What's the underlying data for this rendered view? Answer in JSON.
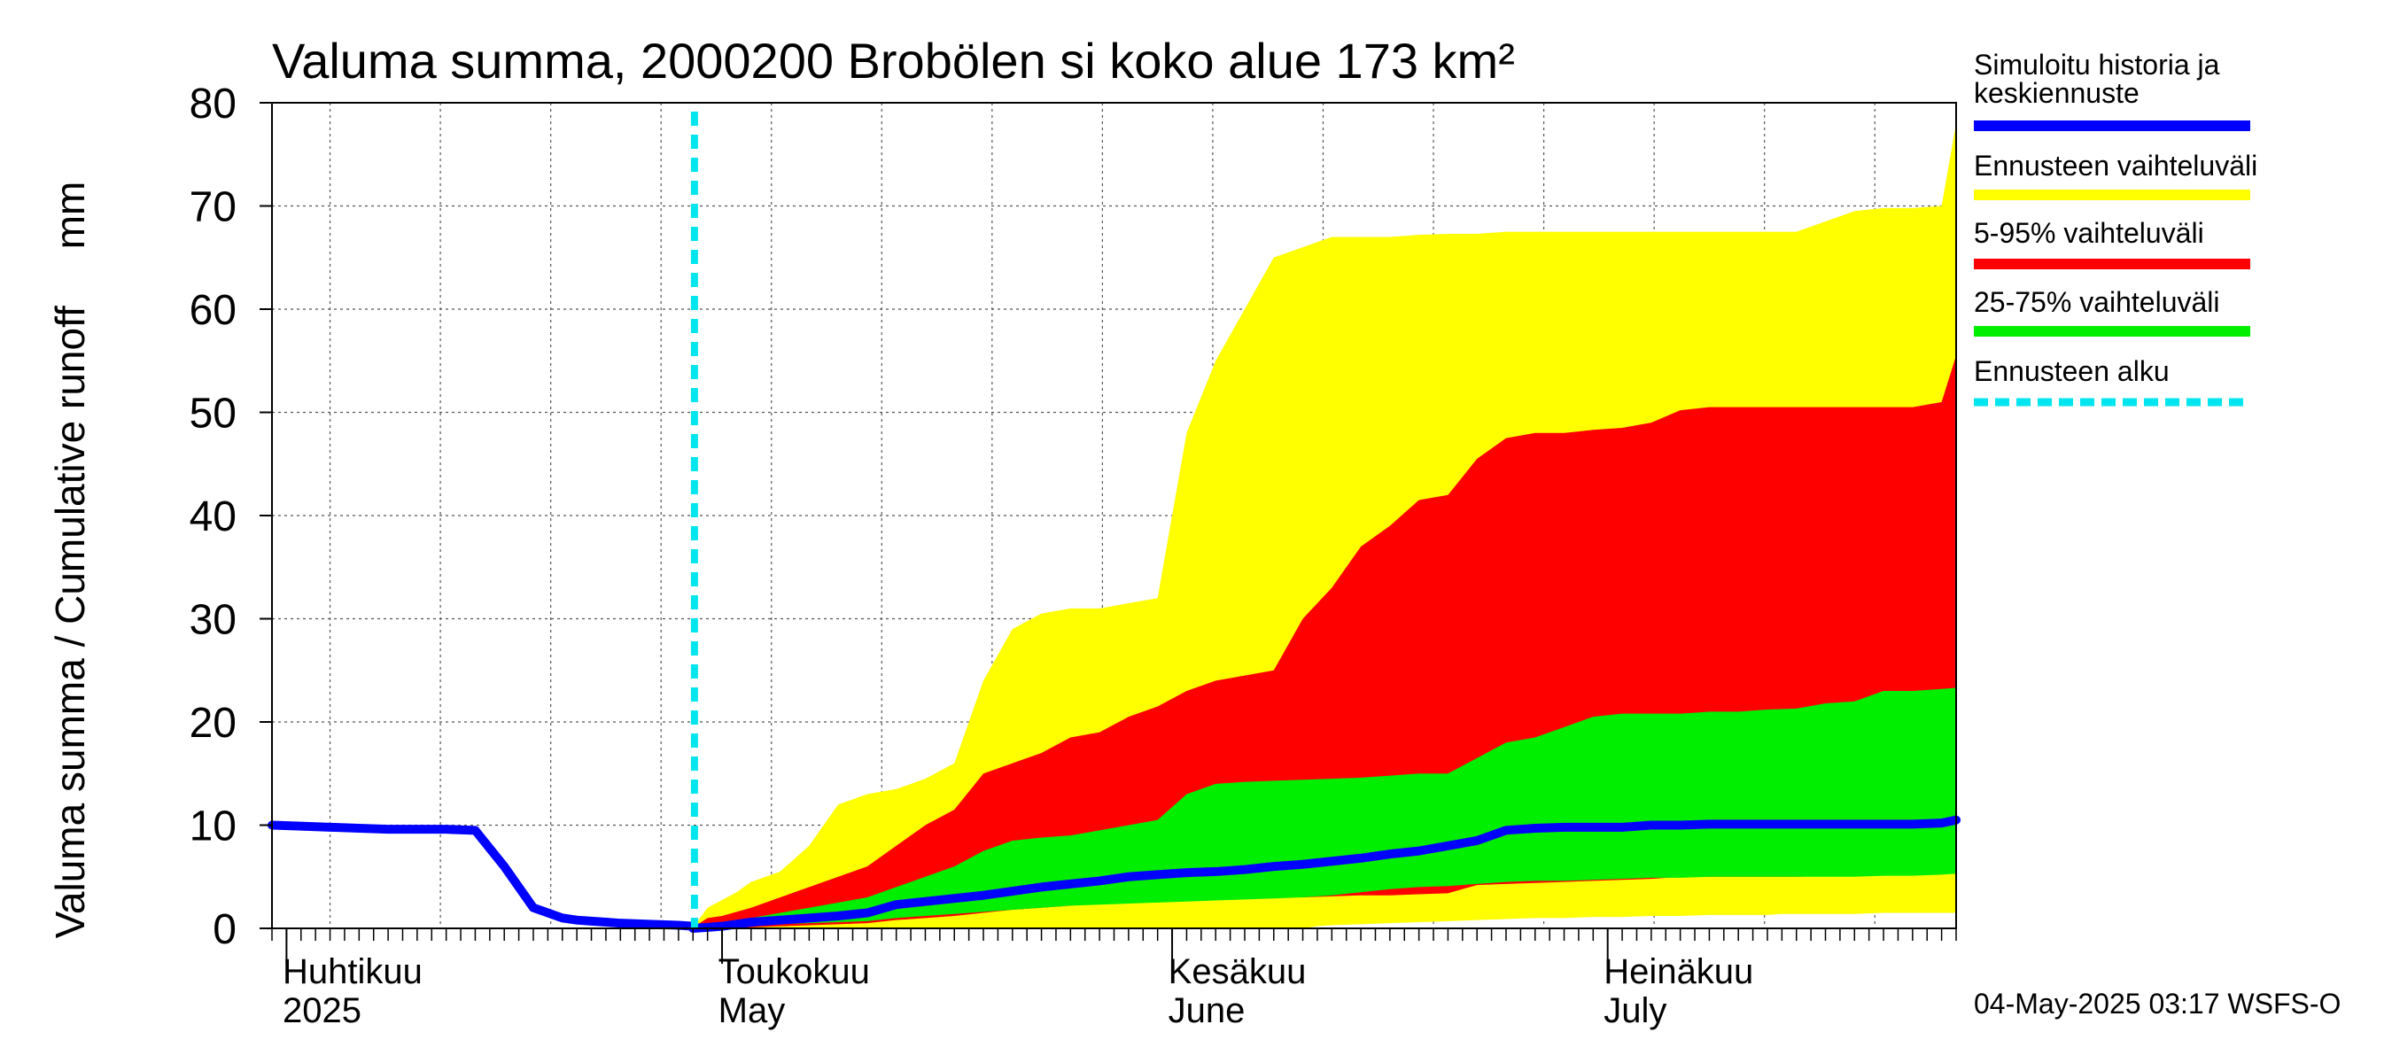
{
  "chart_data": {
    "type": "area",
    "title": "Valuma summa, 2000200 Brobölen si koko alue 173 km²",
    "ylabel": "Valuma summa / Cumulative runoff     mm",
    "ylim": [
      0,
      80
    ],
    "yticks": [
      0,
      10,
      20,
      30,
      40,
      50,
      60,
      70,
      80
    ],
    "xlim_days": [
      0,
      116
    ],
    "x_unit": "days since 2025-03-31",
    "month_labels": [
      {
        "fi": "Huhtikuu",
        "en": "2025",
        "day": 0
      },
      {
        "fi": "Toukokuu",
        "en": "May",
        "day": 30
      },
      {
        "fi": "Kesäkuu",
        "en": "June",
        "day": 61
      },
      {
        "fi": "Heinäkuu",
        "en": "July",
        "day": 91
      }
    ],
    "month_boundaries_days": [
      1,
      31,
      62,
      92
    ],
    "forecast_start_day": 29.1,
    "legend": [
      {
        "label": "Simuloitu historia ja keskiennuste",
        "color": "#0000ff",
        "style": "solid"
      },
      {
        "label": "Ennusteen vaihteluväli",
        "color": "#ffff00",
        "style": "solid"
      },
      {
        "label": "5-95% vaihteluväli",
        "color": "#ff0000",
        "style": "solid"
      },
      {
        "label": "25-75% vaihteluväli",
        "color": "#00ee00",
        "style": "solid"
      },
      {
        "label": "Ennusteen alku",
        "color": "#00e5ee",
        "style": "dashed"
      }
    ],
    "colors": {
      "history": "#0000ff",
      "full_range": "#ffff00",
      "p5_95": "#ff0000",
      "p25_75": "#00ee00",
      "forecast_start": "#00e5ee"
    },
    "history": {
      "x": [
        0,
        2,
        4,
        6,
        8,
        10,
        12,
        14,
        16,
        18,
        20,
        21,
        22,
        23,
        24,
        26,
        28,
        29
      ],
      "y": [
        10.0,
        9.9,
        9.8,
        9.7,
        9.6,
        9.6,
        9.6,
        9.5,
        6.0,
        2.0,
        1.0,
        0.8,
        0.7,
        0.6,
        0.5,
        0.4,
        0.3,
        0.2
      ]
    },
    "median": {
      "x": [
        29,
        30,
        31,
        33,
        35,
        37,
        39,
        41,
        43,
        45,
        47,
        49,
        51,
        53,
        55,
        57,
        59,
        61,
        63,
        65,
        67,
        69,
        71,
        73,
        75,
        77,
        79,
        81,
        83,
        85,
        87,
        89,
        91,
        93,
        95,
        97,
        99,
        101,
        103,
        105,
        107,
        109,
        111,
        113,
        115,
        116
      ],
      "y": [
        0.0,
        0.1,
        0.2,
        0.6,
        0.8,
        1.0,
        1.2,
        1.5,
        2.3,
        2.6,
        2.9,
        3.2,
        3.6,
        4.0,
        4.3,
        4.6,
        5.0,
        5.2,
        5.4,
        5.5,
        5.7,
        6.0,
        6.2,
        6.5,
        6.8,
        7.2,
        7.5,
        8.0,
        8.5,
        9.5,
        9.7,
        9.8,
        9.8,
        9.8,
        10.0,
        10.0,
        10.1,
        10.1,
        10.1,
        10.1,
        10.1,
        10.1,
        10.1,
        10.1,
        10.2,
        10.5
      ]
    },
    "full_range": {
      "x": [
        29,
        30,
        32,
        33,
        35,
        37,
        39,
        41,
        43,
        45,
        47,
        49,
        51,
        53,
        55,
        57,
        59,
        61,
        63,
        65,
        67,
        69,
        71,
        72,
        73,
        75,
        77,
        79,
        81,
        83,
        85,
        87,
        89,
        91,
        93,
        95,
        97,
        99,
        101,
        103,
        104,
        105,
        107,
        109,
        111,
        113,
        115,
        116
      ],
      "lo": [
        0,
        0,
        0,
        0,
        0,
        0,
        0,
        0,
        0,
        0,
        0,
        0,
        0,
        0,
        0,
        0,
        0,
        0,
        0,
        0,
        0,
        0,
        0,
        0.2,
        0.3,
        0.4,
        0.5,
        0.6,
        0.7,
        0.8,
        0.9,
        1.0,
        1.0,
        1.1,
        1.1,
        1.2,
        1.2,
        1.3,
        1.3,
        1.3,
        1.4,
        1.4,
        1.4,
        1.4,
        1.5,
        1.5,
        1.5,
        1.5
      ],
      "hi": [
        0.1,
        2.0,
        3.5,
        4.5,
        5.5,
        8.0,
        12.0,
        13.0,
        13.5,
        14.5,
        16.0,
        24.0,
        29.0,
        30.5,
        31.0,
        31.0,
        31.5,
        32.0,
        48.0,
        55.0,
        60.0,
        65.0,
        66.0,
        66.5,
        67.0,
        67.0,
        67.0,
        67.2,
        67.3,
        67.3,
        67.5,
        67.5,
        67.5,
        67.5,
        67.5,
        67.5,
        67.5,
        67.5,
        67.5,
        67.5,
        67.5,
        67.5,
        68.5,
        69.5,
        69.8,
        69.8,
        70.0,
        78.0
      ]
    },
    "p5_95": {
      "x": [
        29,
        30,
        31,
        33,
        35,
        37,
        39,
        41,
        43,
        45,
        47,
        49,
        51,
        53,
        55,
        57,
        59,
        61,
        63,
        65,
        67,
        69,
        71,
        73,
        75,
        77,
        79,
        81,
        83,
        85,
        87,
        89,
        91,
        93,
        95,
        97,
        99,
        101,
        103,
        105,
        107,
        109,
        111,
        113,
        115,
        116
      ],
      "lo": [
        0,
        0,
        0,
        0.1,
        0.2,
        0.3,
        0.4,
        0.5,
        0.8,
        1.0,
        1.2,
        1.5,
        1.8,
        2.0,
        2.2,
        2.4,
        2.5,
        2.6,
        2.7,
        2.8,
        2.9,
        3.0,
        3.0,
        3.1,
        3.2,
        3.2,
        3.3,
        3.4,
        4.2,
        4.3,
        4.4,
        4.5,
        4.6,
        4.7,
        4.8,
        5.0,
        5.0,
        5.0,
        5.0,
        5.0,
        5.1,
        5.2,
        5.3,
        5.3,
        5.3,
        5.3
      ],
      "hi": [
        0.1,
        1.0,
        1.2,
        2.0,
        3.0,
        4.0,
        5.0,
        6.0,
        8.0,
        10.0,
        11.5,
        15.0,
        16.0,
        17.0,
        18.5,
        19.0,
        20.5,
        21.5,
        23.0,
        24.0,
        24.5,
        25.0,
        30.0,
        33.0,
        37.0,
        39.0,
        41.5,
        42.0,
        45.5,
        47.5,
        48.0,
        48.0,
        48.3,
        48.5,
        49.0,
        50.2,
        50.5,
        50.5,
        50.5,
        50.5,
        50.5,
        50.5,
        50.5,
        50.5,
        51.0,
        55.5
      ]
    },
    "p25_75": {
      "x": [
        29,
        30,
        31,
        33,
        35,
        37,
        39,
        41,
        43,
        45,
        47,
        49,
        51,
        53,
        55,
        57,
        59,
        61,
        63,
        65,
        67,
        69,
        71,
        73,
        75,
        77,
        79,
        81,
        83,
        85,
        87,
        89,
        91,
        93,
        95,
        97,
        99,
        101,
        103,
        105,
        107,
        109,
        111,
        113,
        115,
        116
      ],
      "lo": [
        0,
        0.1,
        0.2,
        0.3,
        0.4,
        0.5,
        0.6,
        0.7,
        1.0,
        1.2,
        1.4,
        1.6,
        1.8,
        2.0,
        2.2,
        2.3,
        2.4,
        2.5,
        2.6,
        2.7,
        2.8,
        2.9,
        3.0,
        3.2,
        3.5,
        3.8,
        4.0,
        4.1,
        4.3,
        4.5,
        4.6,
        4.6,
        4.7,
        4.8,
        4.9,
        4.9,
        5.0,
        5.0,
        5.0,
        5.0,
        5.0,
        5.0,
        5.1,
        5.1,
        5.2,
        5.3
      ],
      "hi": [
        0.1,
        0.4,
        0.6,
        1.0,
        1.5,
        2.0,
        2.5,
        3.0,
        4.0,
        5.0,
        6.0,
        7.5,
        8.5,
        8.8,
        9.0,
        9.5,
        10.0,
        10.5,
        13.0,
        14.0,
        14.2,
        14.3,
        14.4,
        14.5,
        14.6,
        14.8,
        15.0,
        15.0,
        16.5,
        18.0,
        18.5,
        19.5,
        20.5,
        20.8,
        20.8,
        20.8,
        21.0,
        21.0,
        21.2,
        21.3,
        21.8,
        22.0,
        23.0,
        23.0,
        23.2,
        23.3
      ]
    },
    "footer": "04-May-2025 03:17 WSFS-O"
  }
}
